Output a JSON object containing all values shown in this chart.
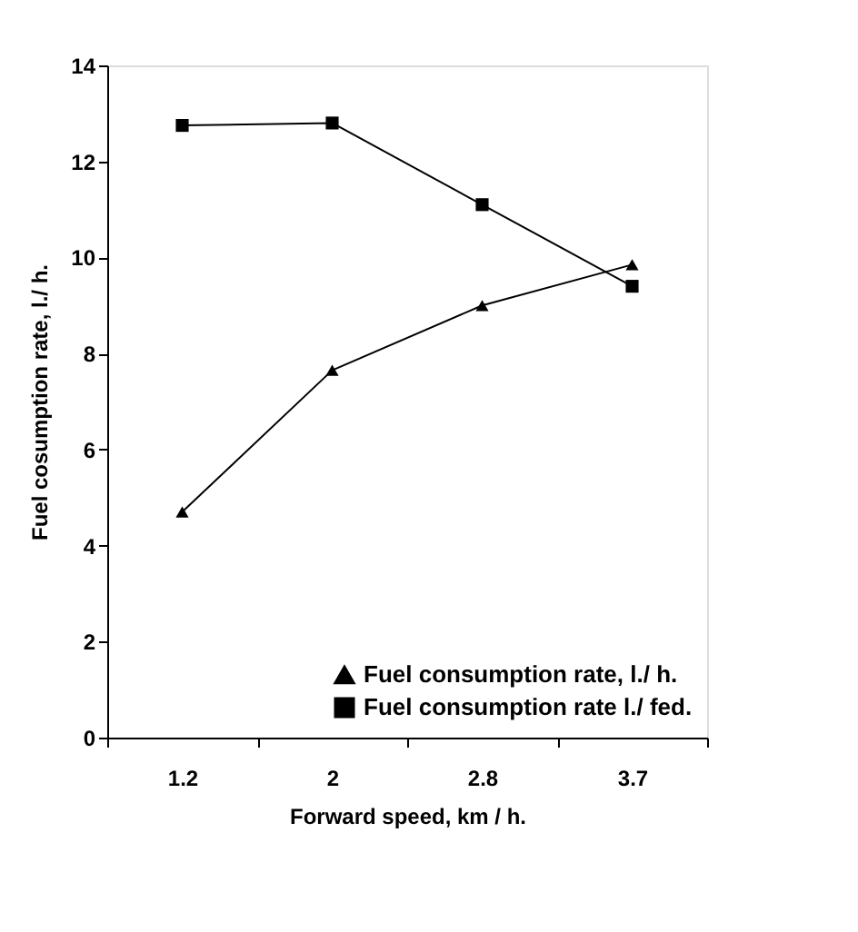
{
  "chart_data": {
    "type": "line",
    "xlabel": "Forward speed, km / h.",
    "ylabel": "Fuel cosumption rate, l./ h.",
    "categories": [
      "1.2",
      "2",
      "2.8",
      "3.7"
    ],
    "series": [
      {
        "name": "Fuel consumption rate, l./ h.",
        "color": "#000000",
        "marker": "triangle",
        "values": [
          4.7,
          7.65,
          9.0,
          9.85
        ]
      },
      {
        "name": "Fuel consumption rate l./ fed.",
        "color": "#000000",
        "marker": "square",
        "values": [
          12.75,
          12.8,
          11.1,
          9.4
        ]
      }
    ],
    "ylim": [
      0,
      14
    ],
    "yticks": [
      0,
      2,
      4,
      6,
      8,
      10,
      12,
      14
    ],
    "grid": false,
    "legend": "bottom right",
    "line_style": "solid"
  }
}
